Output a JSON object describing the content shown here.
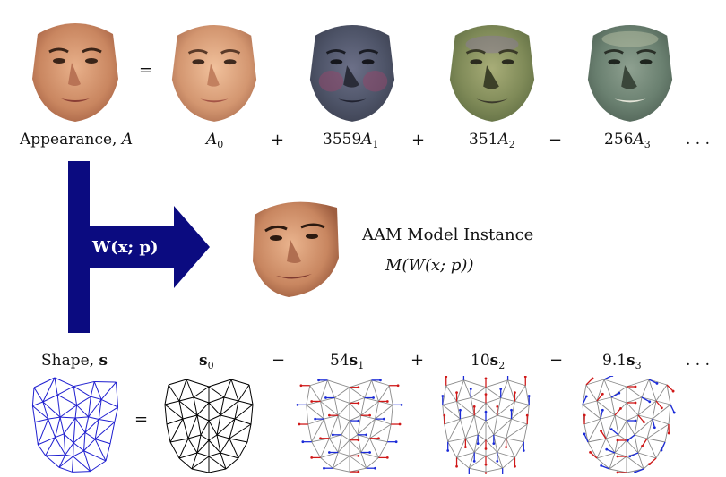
{
  "appearance": {
    "label_prefix": "Appearance,",
    "label_var": "A",
    "equals": "=",
    "terms": [
      {
        "sign": "",
        "coef": "",
        "sym": "A",
        "sub": "0"
      },
      {
        "sign": "+",
        "coef": "3559",
        "sym": "A",
        "sub": "1"
      },
      {
        "sign": "+",
        "coef": "351",
        "sym": "A",
        "sub": "2"
      },
      {
        "sign": "−",
        "coef": "256",
        "sym": "A",
        "sub": "3"
      }
    ],
    "ellipsis": ". . ."
  },
  "warp": {
    "label": "W(x; p)",
    "arrow_color": "#0b0b80"
  },
  "instance": {
    "title": "AAM Model Instance",
    "formula": "M(W(x; p))"
  },
  "shape": {
    "label_prefix": "Shape,",
    "label_var": "s",
    "equals": "=",
    "terms": [
      {
        "sign": "",
        "coef": "",
        "sym": "s",
        "sub": "0"
      },
      {
        "sign": "−",
        "coef": "54",
        "sym": "s",
        "sub": "1"
      },
      {
        "sign": "+",
        "coef": "10",
        "sym": "s",
        "sub": "2"
      },
      {
        "sign": "−",
        "coef": "9.1",
        "sym": "s",
        "sub": "3"
      }
    ],
    "ellipsis": ". . ."
  },
  "colors": {
    "mesh_blue": "#1f1fd0",
    "mesh_black": "#000000",
    "mesh_gray": "#8a8a8a",
    "vector_red": "#d01818",
    "vector_blue": "#1a2ad8"
  }
}
